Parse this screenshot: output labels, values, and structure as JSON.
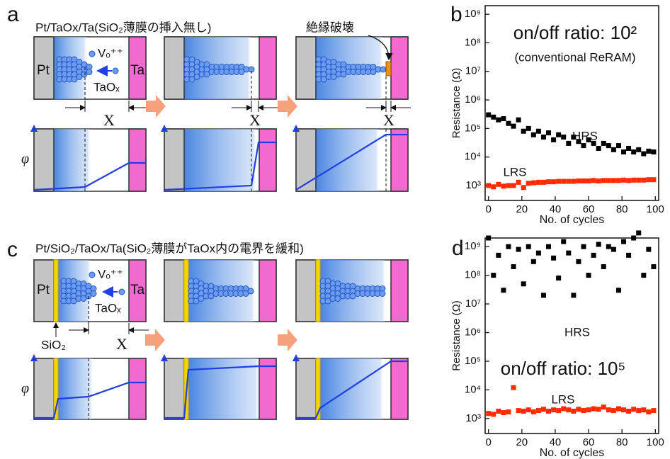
{
  "panel_a": {
    "label": "a",
    "title": "Pt/TaOx/Ta(SiO₂薄膜の挿入無し)",
    "pt": "Pt",
    "ta": "Ta",
    "vacancy": "Vₒ⁺⁺",
    "oxide": "TaOₓ",
    "gap": "X",
    "potential": "φ",
    "breakdown": "絶縁破壊"
  },
  "panel_c": {
    "label": "c",
    "title": "Pt/SiO₂/TaOx/Ta(SiO₂薄膜がTaOx内の電界を緩和)",
    "pt": "Pt",
    "ta": "Ta",
    "vacancy": "Vₒ⁺⁺",
    "oxide": "TaOₓ",
    "insulator": "SiO₂",
    "gap": "X",
    "potential": "φ"
  },
  "chart_data": [
    {
      "type": "scatter",
      "label": "b",
      "annotation": "on/off ratio: 10²",
      "note": "(conventional ReRAM)",
      "x_label": "No. of cycles",
      "y_label": "Resistance (Ω)",
      "log_y": true,
      "xlim": [
        -2,
        102
      ],
      "xticks": [
        0,
        20,
        40,
        60,
        80,
        100
      ],
      "ylim": [
        300,
        2000000000
      ],
      "yticks": [
        {
          "value": 1000,
          "label": "10³"
        },
        {
          "value": 10000,
          "label": "10⁴"
        },
        {
          "value": 100000,
          "label": "10⁵"
        },
        {
          "value": 1000000,
          "label": "10⁶"
        },
        {
          "value": 10000000,
          "label": "10⁷"
        },
        {
          "value": 100000000,
          "label": "10⁸"
        },
        {
          "value": 1000000000,
          "label": "10⁹"
        }
      ],
      "x": [
        0,
        3,
        6,
        9,
        12,
        15,
        18,
        21,
        24,
        27,
        30,
        33,
        36,
        39,
        42,
        45,
        48,
        51,
        54,
        57,
        60,
        63,
        66,
        69,
        72,
        75,
        78,
        81,
        84,
        87,
        90,
        93,
        96,
        99
      ],
      "series": [
        {
          "name": "HRS",
          "color": "#000000",
          "values": [
            300000,
            250000,
            200000,
            220000,
            150000,
            120000,
            200000,
            80000,
            100000,
            60000,
            80000,
            50000,
            70000,
            40000,
            60000,
            50000,
            30000,
            50000,
            35000,
            25000,
            40000,
            30000,
            20000,
            30000,
            25000,
            18000,
            25000,
            15000,
            20000,
            15000,
            18000,
            13000,
            16000,
            15000
          ]
        },
        {
          "name": "LRS",
          "color": "#ff2a00",
          "values": [
            1000,
            900,
            1100,
            950,
            1000,
            1000,
            1300,
            850,
            1200,
            1250,
            1300,
            1300,
            1350,
            1350,
            1400,
            1400,
            1400,
            1400,
            1450,
            1450,
            1450,
            1500,
            1450,
            1500,
            1500,
            1500,
            1500,
            1550,
            1500,
            1550,
            1550,
            1550,
            1600,
            1600
          ]
        }
      ]
    },
    {
      "type": "scatter",
      "label": "d",
      "annotation": "on/off ratio: 10⁵",
      "x_label": "No. of cycles",
      "y_label": "Resistance (Ω)",
      "log_y": true,
      "xlim": [
        -2,
        102
      ],
      "xticks": [
        0,
        20,
        40,
        60,
        80,
        100
      ],
      "ylim": [
        300,
        2000000000
      ],
      "yticks": [
        {
          "value": 1000,
          "label": "10³"
        },
        {
          "value": 10000,
          "label": "10⁴"
        },
        {
          "value": 100000,
          "label": "10⁵"
        },
        {
          "value": 1000000,
          "label": "10⁶"
        },
        {
          "value": 10000000,
          "label": "10⁷"
        },
        {
          "value": 100000000,
          "label": "10⁸"
        },
        {
          "value": 1000000000,
          "label": "10⁹"
        }
      ],
      "x": [
        0,
        3,
        6,
        9,
        12,
        15,
        18,
        21,
        24,
        27,
        30,
        33,
        36,
        39,
        42,
        45,
        48,
        51,
        54,
        57,
        60,
        63,
        66,
        69,
        72,
        75,
        78,
        81,
        84,
        87,
        90,
        93,
        96,
        99
      ],
      "series": [
        {
          "name": "HRS",
          "color": "#000000",
          "values": [
            2000000000,
            100000000,
            500000000,
            30000000,
            1000000000,
            200000000,
            800000000,
            50000000,
            1000000000,
            300000000,
            600000000,
            20000000,
            1000000000,
            400000000,
            80000000,
            1500000000,
            600000000,
            20000000,
            300000000,
            1000000000,
            100000000,
            500000000,
            1200000000,
            200000000,
            1000000000,
            800000000,
            30000000,
            1500000000,
            500000000,
            2000000000,
            3000000000,
            100000000,
            800000000,
            200000000
          ]
        },
        {
          "name": "LRS",
          "color": "#ff2a00",
          "values": [
            1500,
            1400,
            1800,
            1600,
            1700,
            12000,
            1900,
            1800,
            2000,
            1700,
            1900,
            2100,
            1800,
            2000,
            1900,
            2200,
            2000,
            1800,
            2100,
            1900,
            2000,
            2200,
            2100,
            2500,
            2000,
            1900,
            2200,
            2000,
            1800,
            2100,
            1900,
            2000,
            1700,
            1900
          ]
        }
      ]
    }
  ]
}
